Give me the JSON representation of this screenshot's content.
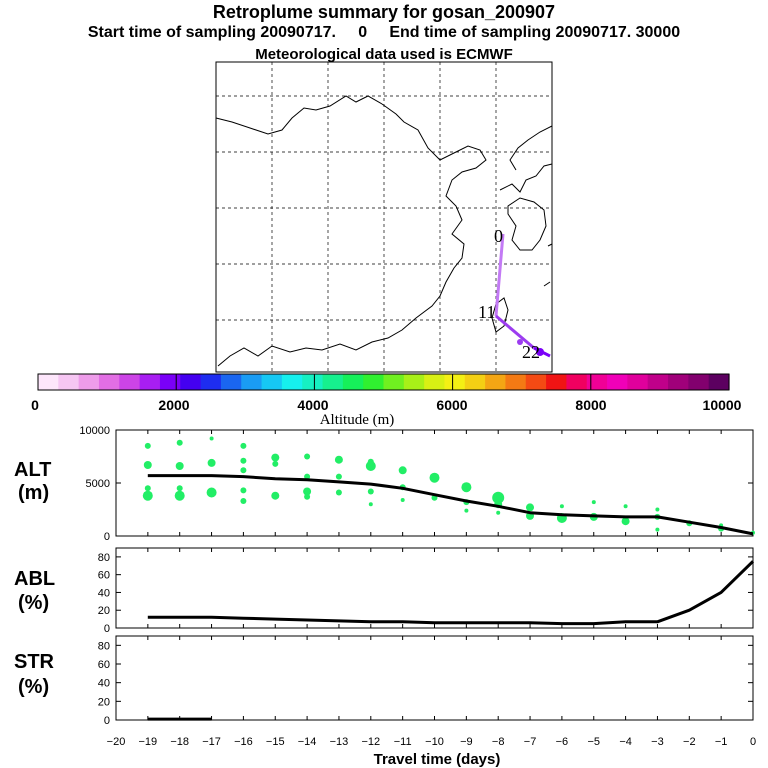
{
  "header": {
    "title": "Retroplume summary for gosan_200907",
    "subtitle": "Start time of sampling 20090717.     0     End time of sampling 20090717. 30000",
    "met": "Meteorological data used is ECMWF"
  },
  "map": {
    "trajectory_labels": [
      "0",
      "11",
      "22"
    ]
  },
  "colorbar": {
    "title": "Altitude (m)",
    "ticks": [
      "0",
      "2000",
      "4000",
      "6000",
      "8000",
      "10000"
    ],
    "colors": [
      "#fde6fb",
      "#f6c6f3",
      "#ee9cea",
      "#e26ee4",
      "#cc44e6",
      "#a81ef2",
      "#7a00f8",
      "#4400f0",
      "#1e2df0",
      "#1a66f0",
      "#1a9cf4",
      "#16c8f4",
      "#16f0ee",
      "#16f0c2",
      "#16f08e",
      "#16f05a",
      "#30f030",
      "#70f020",
      "#a8f018",
      "#d8f014",
      "#f4f014",
      "#f4d014",
      "#f4a614",
      "#f47a14",
      "#f44a14",
      "#f01414",
      "#f00060",
      "#f00096",
      "#f000b8",
      "#e0009c",
      "#c0008a",
      "#a0007a",
      "#82006e",
      "#5c0060"
    ]
  },
  "chart_data": [
    {
      "type": "line",
      "panel": "ALT",
      "label": "ALT",
      "unit": "(m)",
      "ylim": [
        0,
        10000
      ],
      "yticks": [
        "0",
        "5000",
        "10000"
      ],
      "x": [
        0,
        -1,
        -2,
        -3,
        -4,
        -5,
        -6,
        -7,
        -8,
        -9,
        -10,
        -11,
        -12,
        -13,
        -14,
        -15,
        -16,
        -17,
        -18,
        -19
      ],
      "values": [
        200,
        800,
        1300,
        1800,
        1800,
        1900,
        2000,
        2200,
        2800,
        3300,
        3900,
        4500,
        4900,
        5100,
        5300,
        5400,
        5600,
        5700,
        5700,
        5700
      ],
      "scatter_color": "#22ee66",
      "scatter": [
        {
          "x": 0,
          "y": 300,
          "s": 2
        },
        {
          "x": -1,
          "y": 700,
          "s": 3
        },
        {
          "x": -1,
          "y": 1000,
          "s": 2
        },
        {
          "x": -2,
          "y": 1200,
          "s": 3
        },
        {
          "x": -3,
          "y": 2500,
          "s": 2
        },
        {
          "x": -3,
          "y": 1800,
          "s": 3
        },
        {
          "x": -3,
          "y": 600,
          "s": 2
        },
        {
          "x": -4,
          "y": 2800,
          "s": 2
        },
        {
          "x": -4,
          "y": 1400,
          "s": 4
        },
        {
          "x": -5,
          "y": 3200,
          "s": 2
        },
        {
          "x": -5,
          "y": 1800,
          "s": 4
        },
        {
          "x": -6,
          "y": 2800,
          "s": 2
        },
        {
          "x": -6,
          "y": 1700,
          "s": 5
        },
        {
          "x": -7,
          "y": 2700,
          "s": 4
        },
        {
          "x": -7,
          "y": 1900,
          "s": 4
        },
        {
          "x": -8,
          "y": 3600,
          "s": 6
        },
        {
          "x": -8,
          "y": 3000,
          "s": 4
        },
        {
          "x": -8,
          "y": 2200,
          "s": 2
        },
        {
          "x": -9,
          "y": 4600,
          "s": 5
        },
        {
          "x": -9,
          "y": 3200,
          "s": 3
        },
        {
          "x": -9,
          "y": 2400,
          "s": 2
        },
        {
          "x": -10,
          "y": 5500,
          "s": 5
        },
        {
          "x": -10,
          "y": 3600,
          "s": 3
        },
        {
          "x": -11,
          "y": 6200,
          "s": 4
        },
        {
          "x": -11,
          "y": 4600,
          "s": 3
        },
        {
          "x": -11,
          "y": 3400,
          "s": 2
        },
        {
          "x": -12,
          "y": 7000,
          "s": 3
        },
        {
          "x": -12,
          "y": 6600,
          "s": 5
        },
        {
          "x": -12,
          "y": 4200,
          "s": 3
        },
        {
          "x": -12,
          "y": 3000,
          "s": 2
        },
        {
          "x": -13,
          "y": 7200,
          "s": 4
        },
        {
          "x": -13,
          "y": 5600,
          "s": 3
        },
        {
          "x": -13,
          "y": 4100,
          "s": 3
        },
        {
          "x": -14,
          "y": 7500,
          "s": 3
        },
        {
          "x": -14,
          "y": 5600,
          "s": 3
        },
        {
          "x": -14,
          "y": 4200,
          "s": 4
        },
        {
          "x": -14,
          "y": 3700,
          "s": 3
        },
        {
          "x": -15,
          "y": 7400,
          "s": 4
        },
        {
          "x": -15,
          "y": 6800,
          "s": 3
        },
        {
          "x": -15,
          "y": 3800,
          "s": 4
        },
        {
          "x": -16,
          "y": 8500,
          "s": 3
        },
        {
          "x": -16,
          "y": 7100,
          "s": 3
        },
        {
          "x": -16,
          "y": 6200,
          "s": 3
        },
        {
          "x": -16,
          "y": 4300,
          "s": 3
        },
        {
          "x": -16,
          "y": 3300,
          "s": 3
        },
        {
          "x": -17,
          "y": 9200,
          "s": 2
        },
        {
          "x": -17,
          "y": 6900,
          "s": 4
        },
        {
          "x": -17,
          "y": 4100,
          "s": 5
        },
        {
          "x": -18,
          "y": 8800,
          "s": 3
        },
        {
          "x": -18,
          "y": 6600,
          "s": 4
        },
        {
          "x": -18,
          "y": 4500,
          "s": 3
        },
        {
          "x": -18,
          "y": 3800,
          "s": 5
        },
        {
          "x": -19,
          "y": 8500,
          "s": 3
        },
        {
          "x": -19,
          "y": 6700,
          "s": 4
        },
        {
          "x": -19,
          "y": 4500,
          "s": 3
        },
        {
          "x": -19,
          "y": 3800,
          "s": 5
        }
      ]
    },
    {
      "type": "line",
      "panel": "ABL",
      "label": "ABL",
      "unit": "(%)",
      "ylim": [
        0,
        90
      ],
      "yticks": [
        "0",
        "20",
        "40",
        "60",
        "80"
      ],
      "x": [
        0,
        -1,
        -2,
        -3,
        -4,
        -5,
        -6,
        -7,
        -8,
        -9,
        -10,
        -11,
        -12,
        -13,
        -14,
        -15,
        -16,
        -17,
        -18,
        -19
      ],
      "values": [
        75,
        40,
        20,
        7,
        7,
        5,
        5,
        6,
        6,
        6,
        6,
        7,
        7,
        8,
        9,
        10,
        11,
        12,
        12,
        12
      ]
    },
    {
      "type": "line",
      "panel": "STR",
      "label": "STR",
      "unit": "(%)",
      "ylim": [
        0,
        90
      ],
      "yticks": [
        "0",
        "20",
        "40",
        "60",
        "80"
      ],
      "x": [
        -19,
        -18,
        -17
      ],
      "values": [
        1,
        1,
        1
      ]
    }
  ],
  "xaxis": {
    "title": "Travel time (days)",
    "xlim": [
      -20,
      0
    ],
    "ticks": [
      "−20",
      "−19",
      "−18",
      "−17",
      "−16",
      "−15",
      "−14",
      "−13",
      "−12",
      "−11",
      "−10",
      "−9",
      "−8",
      "−7",
      "−6",
      "−5",
      "−4",
      "−3",
      "−2",
      "−1",
      "0"
    ]
  }
}
